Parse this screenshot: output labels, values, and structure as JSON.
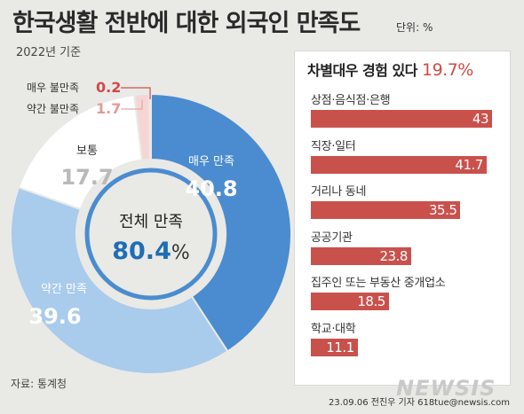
{
  "title": "한국생활 전반에 대한 외국인 만족도",
  "unit": "단위: %",
  "base_note": "2022년 기준",
  "colors": {
    "very_satisfied": "#4a8ccf",
    "somewhat_satisfied": "#a9cbec",
    "neutral": "#ffffff",
    "somewhat_dissatisfied": "#f6d6d4",
    "very_dissatisfied": "#c9514c",
    "bar": "#c9514c",
    "accent_red": "#d04a46"
  },
  "chart_data": [
    {
      "type": "pie",
      "slices": [
        {
          "label": "매우 만족",
          "value": 40.8
        },
        {
          "label": "약간 만족",
          "value": 39.6
        },
        {
          "label": "보통",
          "value": 17.7
        },
        {
          "label": "약간 불만족",
          "value": 1.7
        },
        {
          "label": "매우 불만족",
          "value": 0.2
        }
      ],
      "center_label": "전체 만족",
      "center_value": "80.4",
      "center_unit": "%"
    },
    {
      "type": "bar",
      "title_prefix": "차별대우 경험 있다",
      "title_value": "19.7%",
      "categories": [
        "상점·음식점·은행",
        "직장·일터",
        "거리나 동네",
        "공공기관",
        "집주인 또는 부동산 중개업소",
        "학교·대학"
      ],
      "values": [
        43,
        41.7,
        35.5,
        23.8,
        18.5,
        11.1
      ]
    }
  ],
  "source": "자료: 통계청",
  "credit": "23.09.06 전진우 기자 618tue@newsis.com",
  "logo": "NEWSIS"
}
